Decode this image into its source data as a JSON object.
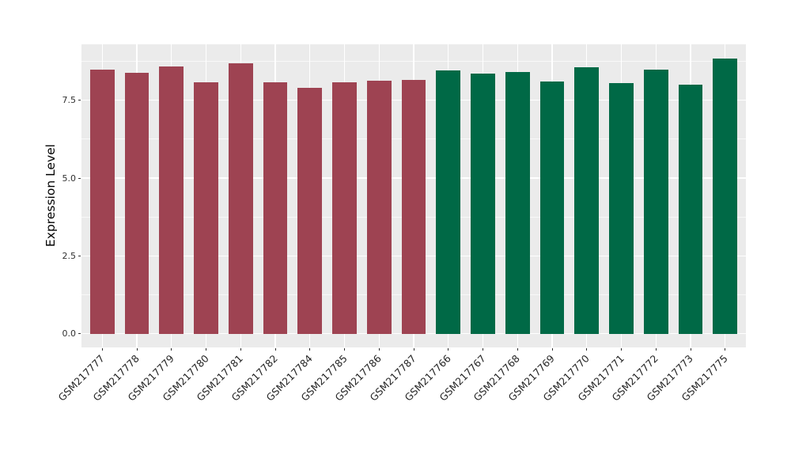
{
  "chart_data": {
    "type": "bar",
    "title": "",
    "xlabel": "",
    "ylabel": "Expression Level",
    "legend_position": "none",
    "categories": [
      "GSM217777",
      "GSM217778",
      "GSM217779",
      "GSM217780",
      "GSM217781",
      "GSM217782",
      "GSM217784",
      "GSM217785",
      "GSM217786",
      "GSM217787",
      "GSM217766",
      "GSM217767",
      "GSM217768",
      "GSM217769",
      "GSM217770",
      "GSM217771",
      "GSM217772",
      "GSM217773",
      "GSM217775"
    ],
    "values": [
      8.48,
      8.38,
      8.59,
      8.08,
      8.69,
      8.08,
      7.91,
      8.08,
      8.14,
      8.16,
      8.45,
      8.35,
      8.41,
      8.11,
      8.55,
      8.06,
      8.48,
      8.0,
      8.84
    ],
    "bar_groups": [
      "maroon",
      "maroon",
      "maroon",
      "maroon",
      "maroon",
      "maroon",
      "maroon",
      "maroon",
      "maroon",
      "maroon",
      "green",
      "green",
      "green",
      "green",
      "green",
      "green",
      "green",
      "green",
      "green"
    ],
    "group_colors": {
      "maroon": "#9E4352",
      "green": "#006946"
    },
    "yticks": {
      "values": [
        0.0,
        2.5,
        5.0,
        7.5
      ],
      "labels": [
        "0.0",
        "2.5",
        "5.0",
        "7.5"
      ]
    },
    "minor_yticks": [
      1.25,
      3.75,
      6.25,
      8.75
    ],
    "ylim": [
      -0.44,
      9.3
    ],
    "x_label_rotation_deg": 45,
    "style": {
      "panel_bg": "#EBEBEB",
      "grid_major": "#FFFFFF",
      "grid_minor": "rgba(255,255,255,0.65)",
      "axis_text_color": "#303030",
      "axis_title_color": "#000000",
      "figure_bg": "#FFFFFF"
    }
  }
}
